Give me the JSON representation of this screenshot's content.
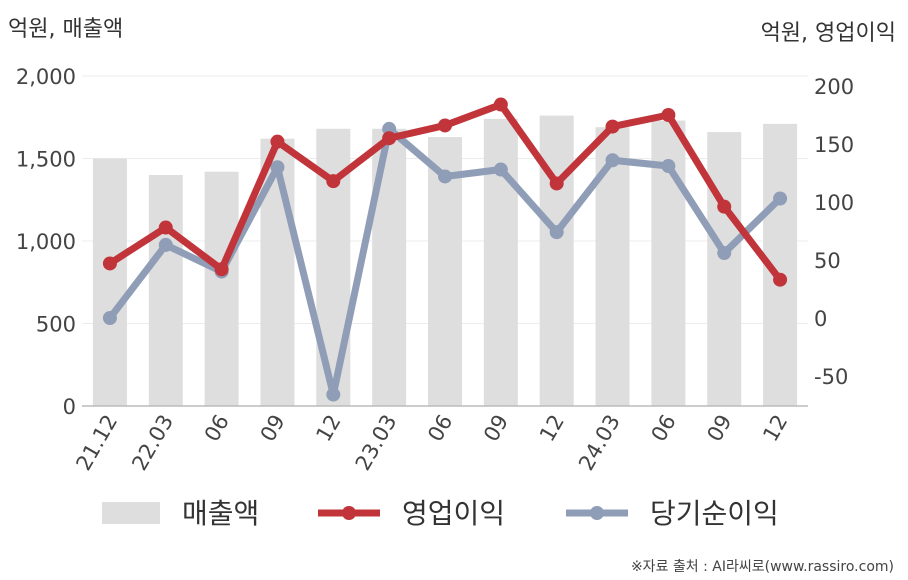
{
  "chart_data": {
    "type": "bar",
    "left_unit": "억원, 매출액",
    "right_unit": "억원, 영업이익",
    "categories": [
      "21.12",
      "22.03",
      "06",
      "09",
      "12",
      "23.03",
      "06",
      "09",
      "12",
      "24.03",
      "06",
      "09",
      "12"
    ],
    "left_axis": {
      "ylim": [
        0,
        2000
      ],
      "ticks": [
        "0",
        "500",
        "1,000",
        "1,500",
        "2,000"
      ],
      "tick_values": [
        0,
        500,
        1000,
        1500,
        2000
      ]
    },
    "right_axis": {
      "ylim": [
        -80,
        210
      ],
      "ticks": [
        "-50",
        "0",
        "50",
        "100",
        "150",
        "200"
      ],
      "tick_values": [
        -50,
        0,
        50,
        100,
        150,
        200
      ]
    },
    "series": [
      {
        "name": "매출액",
        "type": "bar",
        "axis": "left",
        "color": "#dedede",
        "values": [
          1500,
          1400,
          1420,
          1620,
          1680,
          1680,
          1630,
          1740,
          1760,
          1690,
          1730,
          1660,
          1710
        ]
      },
      {
        "name": "영업이익",
        "type": "line",
        "axis": "right",
        "color": "#c0343a",
        "values": [
          47,
          78,
          42,
          152,
          118,
          155,
          166,
          184,
          116,
          165,
          175,
          96,
          33
        ]
      },
      {
        "name": "당기순이익",
        "type": "line",
        "axis": "right",
        "color": "#8f9db7",
        "values": [
          0,
          63,
          40,
          130,
          -66,
          163,
          122,
          128,
          74,
          136,
          131,
          56,
          103
        ]
      }
    ],
    "grid": true,
    "legend_position": "bottom"
  },
  "source": "※자료 출처 : AI라씨로(www.rassiro.com)"
}
